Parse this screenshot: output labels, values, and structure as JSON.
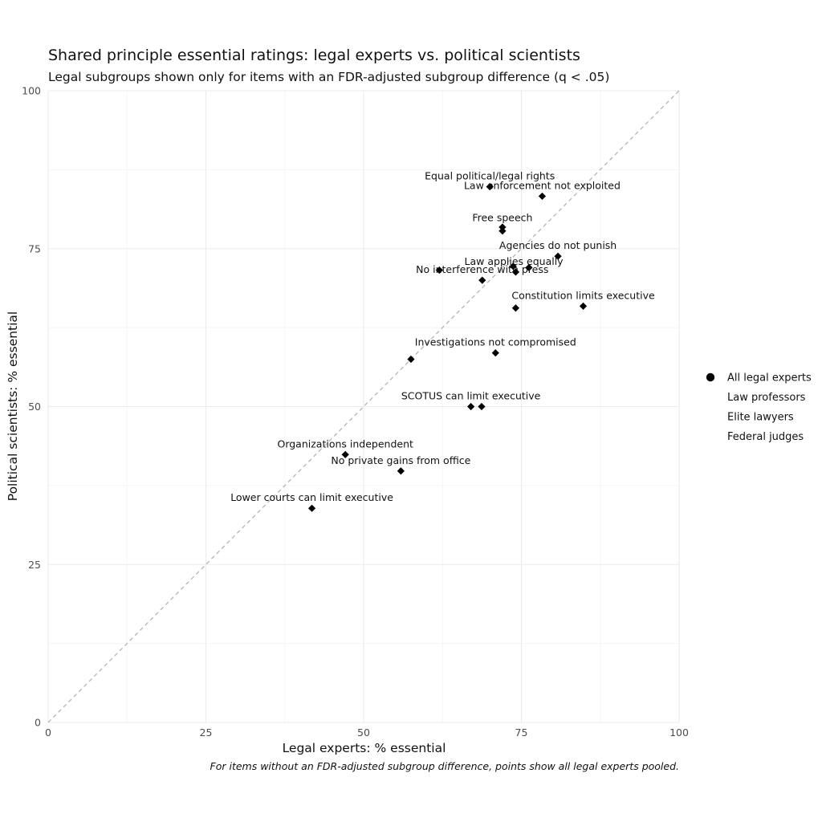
{
  "chart_data": {
    "type": "scatter",
    "title": "Shared principle essential ratings: legal experts vs. political scientists",
    "subtitle": "Legal subgroups shown only for items with an FDR-adjusted subgroup difference (q < .05)",
    "xlabel": "Legal experts: % essential",
    "ylabel": "Political scientists: % essential",
    "caption": "For items without an FDR-adjusted subgroup difference, points show all legal experts pooled.",
    "xlim": [
      0,
      100
    ],
    "ylim": [
      0,
      100
    ],
    "x_ticks": [
      0,
      25,
      50,
      75,
      100
    ],
    "y_ticks": [
      0,
      25,
      50,
      75,
      100
    ],
    "grid": true,
    "reference_line": "y = x (dashed)",
    "legend_position": "right",
    "legend": [
      {
        "label": "All legal experts",
        "marker": "circle"
      },
      {
        "label": "Law professors",
        "marker": "none"
      },
      {
        "label": "Elite lawyers",
        "marker": "none"
      },
      {
        "label": "Federal judges",
        "marker": "none"
      }
    ],
    "labels": [
      {
        "text": "Equal political/legal rights",
        "x": 70,
        "y": 84.8
      },
      {
        "text": "Law enforcement not exploited",
        "x": 78.3,
        "y": 83.3
      },
      {
        "text": "Free speech",
        "x": 72,
        "y": 78.2
      },
      {
        "text": "Agencies do not punish",
        "x": 80.8,
        "y": 73.8
      },
      {
        "text": "Law applies equally",
        "x": 73.8,
        "y": 71.3
      },
      {
        "text": "No interference with press",
        "x": 68.8,
        "y": 70
      },
      {
        "text": "Constitution limits executive",
        "x": 84.8,
        "y": 65.9
      },
      {
        "text": "Investigations not compromised",
        "x": 70.9,
        "y": 58.5
      },
      {
        "text": "SCOTUS can limit executive",
        "x": 67,
        "y": 50
      },
      {
        "text": "Organizations independent",
        "x": 47.1,
        "y": 42.4
      },
      {
        "text": "No private gains from office",
        "x": 55.9,
        "y": 39.8
      },
      {
        "text": "Lower courts can limit executive",
        "x": 41.8,
        "y": 33.9
      }
    ],
    "points": [
      {
        "x": 70,
        "y": 84.8
      },
      {
        "x": 78.3,
        "y": 83.3
      },
      {
        "x": 72,
        "y": 78.4
      },
      {
        "x": 72,
        "y": 77.8
      },
      {
        "x": 80.8,
        "y": 73.8
      },
      {
        "x": 62,
        "y": 71.6
      },
      {
        "x": 73.7,
        "y": 72.2
      },
      {
        "x": 76.2,
        "y": 72
      },
      {
        "x": 74.1,
        "y": 71.3
      },
      {
        "x": 68.8,
        "y": 70
      },
      {
        "x": 74.1,
        "y": 65.6
      },
      {
        "x": 84.8,
        "y": 65.9
      },
      {
        "x": 70.9,
        "y": 58.5
      },
      {
        "x": 57.5,
        "y": 57.5
      },
      {
        "x": 67,
        "y": 50
      },
      {
        "x": 68.7,
        "y": 50
      },
      {
        "x": 47.1,
        "y": 42.4
      },
      {
        "x": 55.9,
        "y": 39.8
      },
      {
        "x": 41.8,
        "y": 33.9
      }
    ]
  }
}
